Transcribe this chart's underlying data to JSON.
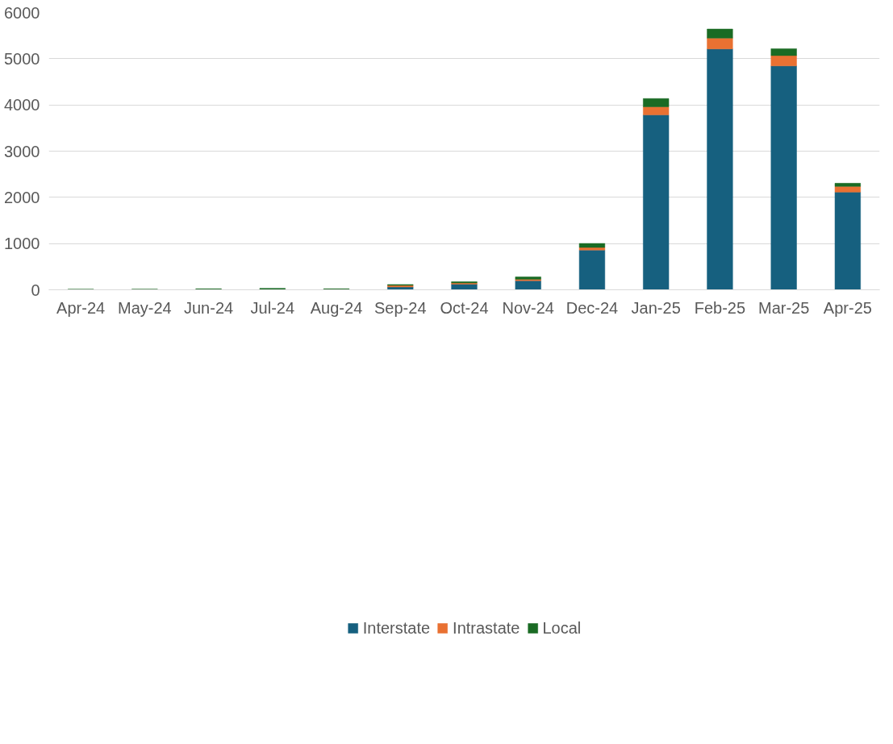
{
  "chart_data": {
    "type": "bar",
    "stacked": true,
    "categories": [
      "Apr-24",
      "May-24",
      "Jun-24",
      "Jul-24",
      "Aug-24",
      "Sep-24",
      "Oct-24",
      "Nov-24",
      "Dec-24",
      "Jan-25",
      "Feb-25",
      "Mar-25",
      "Apr-25"
    ],
    "series": [
      {
        "name": "Interstate",
        "color": "#16607f",
        "values": [
          0,
          0,
          1,
          0,
          2,
          61,
          121,
          197,
          860,
          3783,
          5212,
          4845,
          2113
        ]
      },
      {
        "name": "Intrastate",
        "color": "#e97132",
        "values": [
          1,
          1,
          2,
          5,
          2,
          34,
          27,
          31,
          56,
          177,
          234,
          224,
          124
        ]
      },
      {
        "name": "Local",
        "color": "#1a6b24",
        "values": [
          12,
          14,
          18,
          27,
          17,
          19,
          26,
          50,
          87,
          178,
          196,
          148,
          68
        ]
      }
    ],
    "ylim": [
      0,
      6000
    ],
    "yticks": [
      0,
      1000,
      2000,
      3000,
      4000,
      5000,
      6000
    ],
    "grid": "y",
    "legend": "bottom"
  }
}
